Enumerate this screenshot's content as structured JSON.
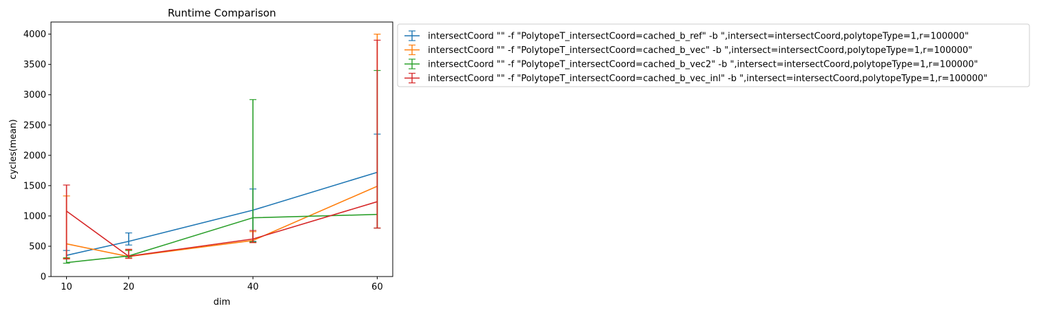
{
  "chart_data": {
    "type": "line",
    "title": "Runtime Comparison",
    "xlabel": "dim",
    "ylabel": "cycles(mean)",
    "x": [
      10,
      20,
      40,
      60
    ],
    "xticks": [
      10,
      20,
      40,
      60
    ],
    "yticks": [
      0,
      500,
      1000,
      1500,
      2000,
      2500,
      3000,
      3500,
      4000
    ],
    "xlim": [
      7.5,
      62.5
    ],
    "ylim": [
      0,
      4200
    ],
    "grid": false,
    "legend_position": "outside-upper-right",
    "series": [
      {
        "name": "intersectCoord \"\" -f \"PolytopeT_intersectCoord=cached_b_ref\" -b \",intersect=intersectCoord,polytopeType=1,r=100000\"",
        "color": "#1f77b4",
        "values": [
          350,
          580,
          1095,
          1720
        ],
        "err_low": [
          300,
          520,
          580,
          800
        ],
        "err_high": [
          430,
          720,
          1445,
          2350
        ]
      },
      {
        "name": "intersectCoord \"\" -f \"PolytopeT_intersectCoord=cached_b_vec\" -b \",intersect=intersectCoord,polytopeType=1,r=100000\"",
        "color": "#ff7f0e",
        "values": [
          540,
          330,
          595,
          1490
        ],
        "err_low": [
          300,
          300,
          560,
          800
        ],
        "err_high": [
          1330,
          440,
          740,
          4000
        ]
      },
      {
        "name": "intersectCoord \"\" -f \"PolytopeT_intersectCoord=cached_b_vec2\" -b \",intersect=intersectCoord,polytopeType=1,r=100000\"",
        "color": "#2ca02c",
        "values": [
          230,
          340,
          970,
          1025
        ],
        "err_low": [
          220,
          320,
          570,
          800
        ],
        "err_high": [
          310,
          430,
          2920,
          3400
        ]
      },
      {
        "name": "intersectCoord \"\" -f \"PolytopeT_intersectCoord=cached_b_vec_inl\" -b \",intersect=intersectCoord,polytopeType=1,r=100000\"",
        "color": "#d62728",
        "values": [
          1080,
          335,
          620,
          1235
        ],
        "err_low": [
          290,
          300,
          560,
          800
        ],
        "err_high": [
          1510,
          450,
          760,
          3900
        ]
      }
    ]
  }
}
